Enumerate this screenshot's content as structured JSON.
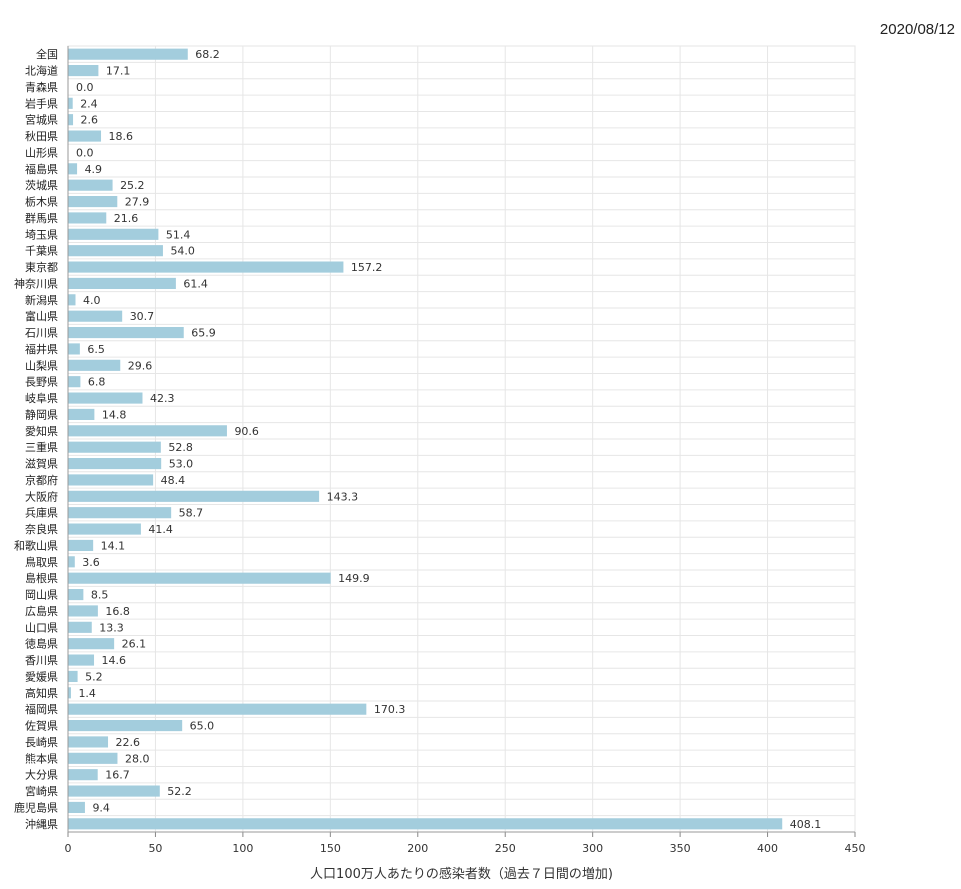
{
  "date": "2020/08/12",
  "chart_data": {
    "type": "bar",
    "orientation": "horizontal",
    "xlabel": "人口100万人あたりの感染者数（過去７日間の増加)",
    "xlim": [
      0,
      450
    ],
    "xticks": [
      0,
      50,
      100,
      150,
      200,
      250,
      300,
      350,
      400,
      450
    ],
    "grid": true,
    "bar_color": "#a3cddd",
    "categories": [
      "全国",
      "北海道",
      "青森県",
      "岩手県",
      "宮城県",
      "秋田県",
      "山形県",
      "福島県",
      "茨城県",
      "栃木県",
      "群馬県",
      "埼玉県",
      "千葉県",
      "東京都",
      "神奈川県",
      "新潟県",
      "富山県",
      "石川県",
      "福井県",
      "山梨県",
      "長野県",
      "岐阜県",
      "静岡県",
      "愛知県",
      "三重県",
      "滋賀県",
      "京都府",
      "大阪府",
      "兵庫県",
      "奈良県",
      "和歌山県",
      "鳥取県",
      "島根県",
      "岡山県",
      "広島県",
      "山口県",
      "徳島県",
      "香川県",
      "愛媛県",
      "高知県",
      "福岡県",
      "佐賀県",
      "長崎県",
      "熊本県",
      "大分県",
      "宮崎県",
      "鹿児島県",
      "沖縄県"
    ],
    "values": [
      68.2,
      17.1,
      0.0,
      2.4,
      2.6,
      18.6,
      0.0,
      4.9,
      25.2,
      27.9,
      21.6,
      51.4,
      54.0,
      157.2,
      61.4,
      4.0,
      30.7,
      65.9,
      6.5,
      29.6,
      6.8,
      42.3,
      14.8,
      90.6,
      52.8,
      53.0,
      48.4,
      143.3,
      58.7,
      41.4,
      14.1,
      3.6,
      149.9,
      8.5,
      16.8,
      13.3,
      26.1,
      14.6,
      5.2,
      1.4,
      170.3,
      65.0,
      22.6,
      28.0,
      16.7,
      52.2,
      9.4,
      408.1
    ]
  }
}
